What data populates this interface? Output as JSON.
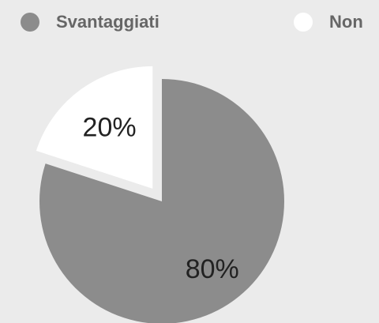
{
  "chart_data": {
    "type": "pie",
    "categories": [
      "Svantaggiati",
      "Non"
    ],
    "values": [
      80,
      20
    ],
    "value_labels": [
      "80%",
      "20%"
    ],
    "colors": [
      "#8c8c8c",
      "#ffffff"
    ],
    "legend": "top"
  }
}
